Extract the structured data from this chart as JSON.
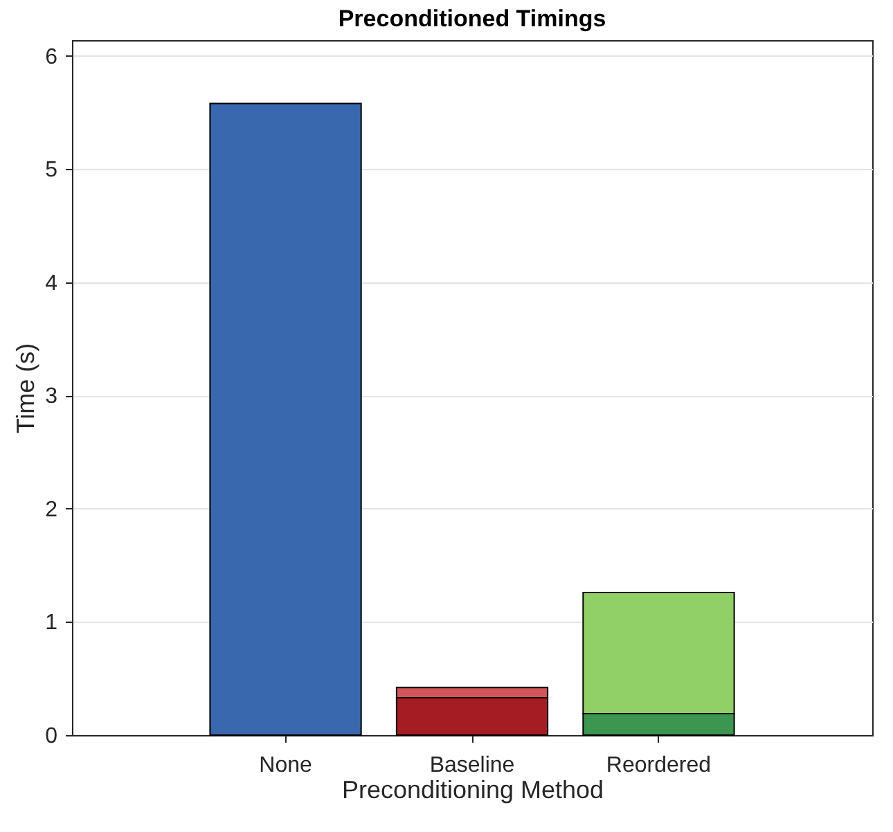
{
  "chart_data": {
    "type": "bar",
    "title": "Preconditioned Timings",
    "xlabel": "Preconditioning Method",
    "ylabel": "Time (s)",
    "categories": [
      "None",
      "Baseline",
      "Reordered"
    ],
    "stacked": true,
    "series": [
      {
        "colors": [
          "#3a68ae",
          "#a51d23",
          "#3c9650"
        ],
        "values": [
          5.58,
          0.33,
          0.19
        ]
      },
      {
        "colors": [
          "#3a68ae",
          "#d1575d",
          "#91d067"
        ],
        "values": [
          null,
          0.09,
          1.07
        ]
      }
    ],
    "ylim": [
      0,
      6.14
    ],
    "yticks": [
      0,
      1,
      2,
      3,
      4,
      5,
      6
    ],
    "grid": "y"
  }
}
